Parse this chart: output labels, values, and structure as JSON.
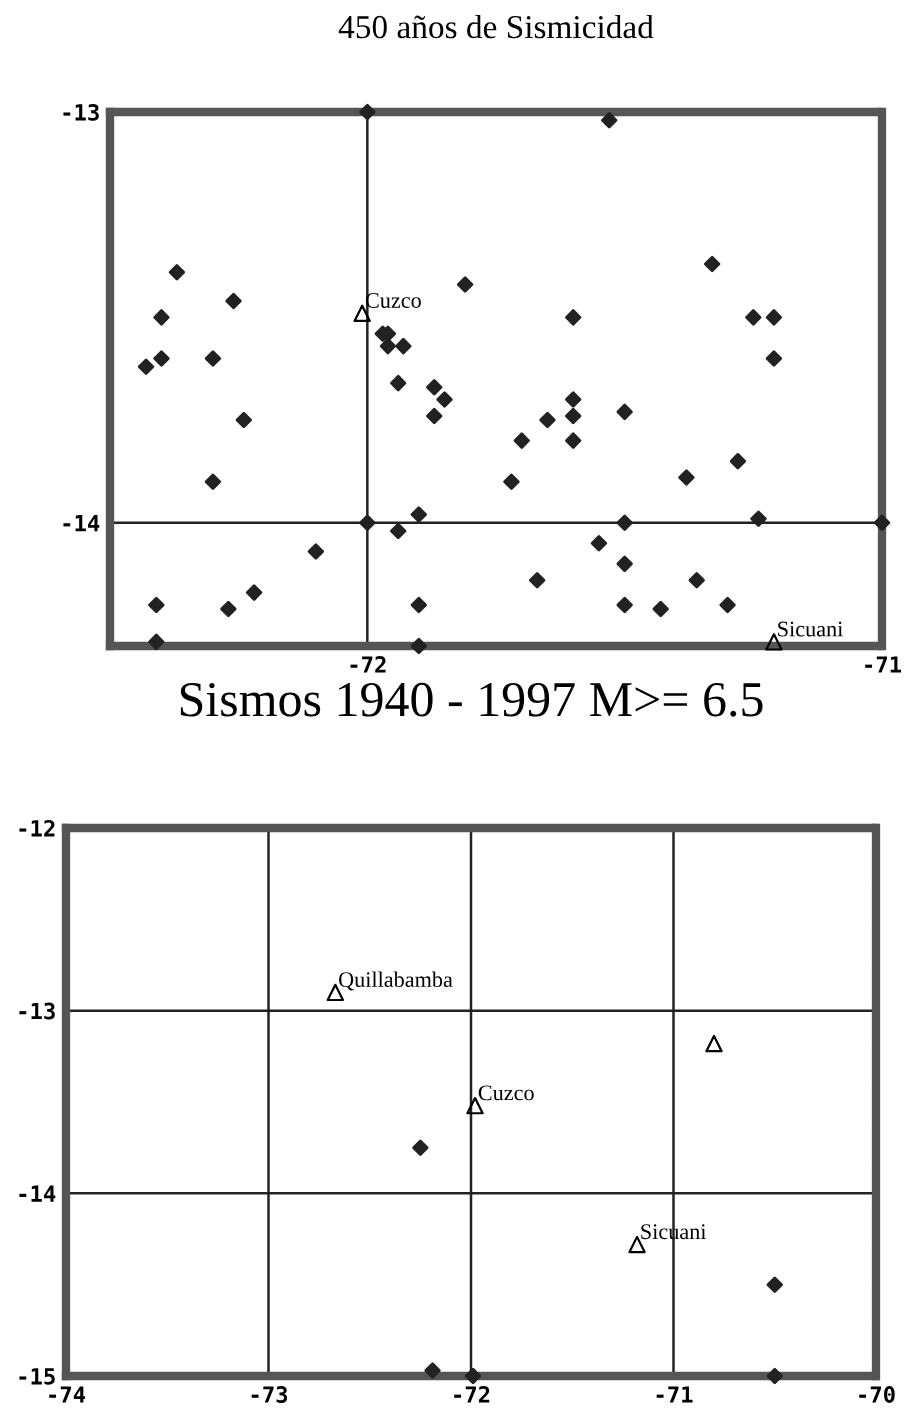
{
  "chart_data": [
    {
      "type": "scatter",
      "title": "450 años de Sismicidad",
      "xlim": [
        -72.5,
        -71
      ],
      "ylim": [
        -14.3,
        -13
      ],
      "xticks": [
        -72,
        -71
      ],
      "yticks": [
        -13,
        -14
      ],
      "grid": true,
      "series": [
        {
          "color": "#222222",
          "marker": "diamond",
          "x": [
            -71.53,
            -71.33,
            -72.37,
            -71.81,
            -72.26,
            -72.4,
            -71.6,
            -71.25,
            -71.21,
            -71.97,
            -71.96,
            -71.96,
            -71.93,
            -72.4,
            -72.3,
            -71.21,
            -72.43,
            -71.94,
            -71.87,
            -71.85,
            -71.6,
            -71.5,
            -71.87,
            -71.6,
            -72.24,
            -71.65,
            -71.7,
            -71.6,
            -71.28,
            -72.3,
            -71.72,
            -71.38,
            -71.9,
            -71.24,
            -72.0,
            -71.5,
            -71.0,
            -71.94,
            -71.55,
            -72.1,
            -71.5,
            -71.67,
            -71.36,
            -72.22,
            -71.9,
            -71.5,
            -71.3,
            -72.41,
            -72.27,
            -71.43,
            -72.41,
            -71.9,
            -72.0
          ],
          "values": [
            -13.02,
            -13.37,
            -13.39,
            -13.42,
            -13.46,
            -13.5,
            -13.5,
            -13.5,
            -13.5,
            -13.54,
            -13.54,
            -13.57,
            -13.57,
            -13.6,
            -13.6,
            -13.6,
            -13.62,
            -13.66,
            -13.67,
            -13.7,
            -13.7,
            -13.73,
            -13.74,
            -13.74,
            -13.75,
            -13.75,
            -13.8,
            -13.8,
            -13.85,
            -13.9,
            -13.9,
            -13.89,
            -13.98,
            -13.99,
            -14.0,
            -14.0,
            -14.0,
            -14.02,
            -14.05,
            -14.07,
            -14.1,
            -14.14,
            -14.14,
            -14.17,
            -14.2,
            -14.2,
            -14.2,
            -14.2,
            -14.21,
            -14.21,
            -14.29,
            -14.3,
            -13.0
          ]
        },
        {
          "color": "#000000",
          "marker": "triangle",
          "x": [
            -72.01,
            -71.21
          ],
          "values": [
            -13.49,
            -14.29
          ]
        }
      ],
      "annotations": [
        {
          "text": "Cuzco",
          "x": -72.01,
          "y": -13.49
        },
        {
          "text": "Sicuani",
          "x": -71.21,
          "y": -14.29
        }
      ]
    },
    {
      "type": "scatter",
      "title": "Sismos 1940 - 1997 M>= 6.5",
      "xlim": [
        -74,
        -70
      ],
      "ylim": [
        -15,
        -12
      ],
      "xticks": [
        -74,
        -73,
        -72,
        -71,
        -70
      ],
      "yticks": [
        -12,
        -13,
        -14,
        -15
      ],
      "grid": true,
      "series": [
        {
          "color": "#222222",
          "marker": "diamond",
          "x": [
            -72.25,
            -72.19,
            -71.99,
            -70.5,
            -70.5
          ],
          "values": [
            -13.75,
            -14.97,
            -15.0,
            -14.5,
            -15.0
          ]
        },
        {
          "color": "#000000",
          "marker": "triangle",
          "x": [
            -72.67,
            -71.98,
            -70.8,
            -71.18
          ],
          "values": [
            -12.9,
            -13.52,
            -13.18,
            -14.28
          ]
        }
      ],
      "annotations": [
        {
          "text": "Quillabamba",
          "x": -72.67,
          "y": -12.9
        },
        {
          "text": "Cuzco",
          "x": -71.98,
          "y": -13.52
        },
        {
          "text": "Sicuani",
          "x": -71.18,
          "y": -14.28
        }
      ]
    }
  ]
}
